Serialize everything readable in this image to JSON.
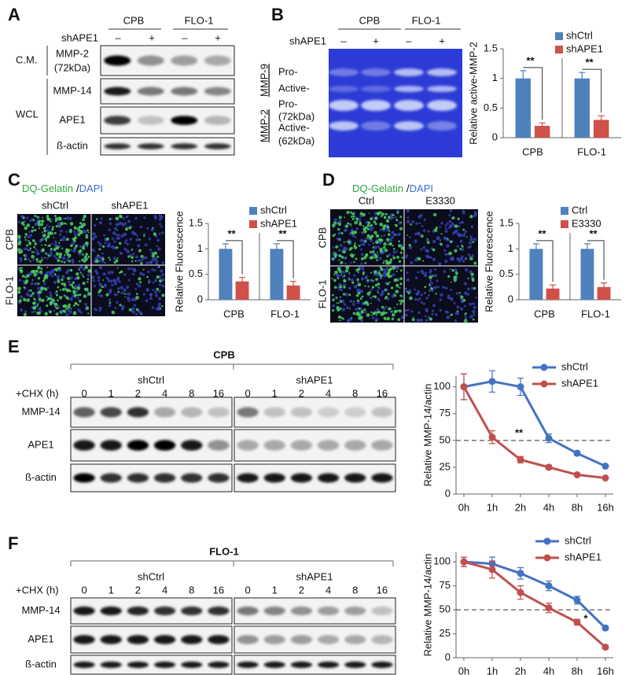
{
  "figure": {
    "A": {
      "label": "A",
      "groups": [
        "CPB",
        "FLO-1"
      ],
      "treatment": "shAPE1",
      "signs": [
        "–",
        "+",
        "–",
        "+"
      ],
      "sections": [
        "C.M.",
        "WCL"
      ],
      "blots": [
        {
          "name": "MMP-2",
          "sub": "(72kDa)"
        },
        {
          "name": "MMP-14"
        },
        {
          "name": "APE1"
        },
        {
          "name": "ß-actin"
        }
      ]
    },
    "B": {
      "label": "B",
      "groups": [
        "CPB",
        "FLO-1"
      ],
      "treatment": "shAPE1",
      "signs": [
        "–",
        "+",
        "–",
        "+"
      ],
      "enzymes": [
        "MMP-9",
        "MMP-2"
      ],
      "bands": [
        "Pro-",
        "Active-",
        "Pro-",
        "(72kDa)",
        "Active-",
        "(62kDa)"
      ]
    },
    "C": {
      "label": "C",
      "stain": "DQ-Gelatin",
      "slash": "/",
      "counter": "DAPI",
      "columns": [
        "shCtrl",
        "shAPE1"
      ],
      "rows": [
        "CPB",
        "FLO-1"
      ]
    },
    "D": {
      "label": "D",
      "stain": "DQ-Gelatin",
      "slash": "/",
      "counter": "DAPI",
      "columns": [
        "Ctrl",
        "E3330"
      ],
      "rows": [
        "CPB",
        "FLO-1"
      ]
    },
    "E": {
      "label": "E",
      "title": "CPB",
      "groups": [
        "shCtrl",
        "shAPE1"
      ],
      "time_label": "+CHX (h)",
      "times": [
        0,
        1,
        2,
        4,
        8,
        16
      ],
      "blots": [
        "MMP-14",
        "APE1",
        "ß-actin"
      ]
    },
    "F": {
      "label": "F",
      "title": "FLO-1",
      "groups": [
        "shCtrl",
        "shAPE1"
      ],
      "time_label": "+CHX (h)",
      "times": [
        0,
        1,
        2,
        4,
        8,
        16
      ],
      "blots": [
        "MMP-14",
        "APE1",
        "ß-actin"
      ]
    }
  },
  "chart_data": [
    {
      "type": "bar",
      "y_label": "Relative active-MMP-2",
      "categories": [
        "CPB",
        "FLO-1"
      ],
      "ylim": [
        0,
        1.5
      ],
      "yticks": [
        0,
        0.5,
        1,
        1.5
      ],
      "legend": "top-right",
      "series": [
        {
          "name": "shCtrl",
          "color": "#4f81bd",
          "values": [
            1,
            1
          ],
          "errors": [
            0.13,
            0.1
          ]
        },
        {
          "name": "shAPE1",
          "color": "#d0504a",
          "values": [
            0.2,
            0.3
          ],
          "errors": [
            0.05,
            0.07
          ]
        }
      ],
      "annotations": [
        "**",
        "**"
      ]
    },
    {
      "type": "bar",
      "y_label": "Relative Fluorescence",
      "categories": [
        "CPB",
        "FLO-1"
      ],
      "ylim": [
        0,
        1.5
      ],
      "yticks": [
        0,
        0.5,
        1,
        1.5
      ],
      "legend": "top-right",
      "series": [
        {
          "name": "shCtrl",
          "color": "#4f81bd",
          "values": [
            1,
            1
          ],
          "errors": [
            0.1,
            0.1
          ]
        },
        {
          "name": "shAPE1",
          "color": "#d0504a",
          "values": [
            0.36,
            0.28
          ],
          "errors": [
            0.08,
            0.08
          ]
        }
      ],
      "annotations": [
        "**",
        "**"
      ]
    },
    {
      "type": "bar",
      "y_label": "Relative Fluorescence",
      "categories": [
        "CPB",
        "FLO-1"
      ],
      "ylim": [
        0,
        1.5
      ],
      "yticks": [
        0,
        0.5,
        1,
        1.5
      ],
      "legend": "top-right",
      "series": [
        {
          "name": "Ctrl",
          "color": "#4f81bd",
          "values": [
            1,
            1
          ],
          "errors": [
            0.1,
            0.1
          ]
        },
        {
          "name": "E3330",
          "color": "#d0504a",
          "values": [
            0.22,
            0.25
          ],
          "errors": [
            0.07,
            0.08
          ]
        }
      ],
      "annotations": [
        "**",
        "**"
      ]
    },
    {
      "type": "line",
      "y_label": "Relative MMP-14/actin",
      "categories": [
        "0h",
        "1h",
        "2h",
        "4h",
        "8h",
        "16h"
      ],
      "ylim": [
        0,
        110
      ],
      "yticks": [
        0,
        25,
        50,
        75,
        100
      ],
      "legend": "top-right",
      "reference_line": 50,
      "series": [
        {
          "name": "shCtrl",
          "color": "#4472c4",
          "values": [
            100,
            105,
            100,
            52,
            38,
            26
          ],
          "errors": [
            12,
            10,
            8,
            4,
            2,
            1
          ]
        },
        {
          "name": "shAPE1",
          "color": "#c0504d",
          "values": [
            100,
            53,
            32,
            25,
            18,
            15
          ],
          "errors": [
            12,
            6,
            3,
            2,
            1,
            1
          ]
        }
      ],
      "annotation": "**"
    },
    {
      "type": "line",
      "y_label": "Relative MMP-14/actin",
      "categories": [
        "0h",
        "1h",
        "2h",
        "4h",
        "8h",
        "16h"
      ],
      "ylim": [
        0,
        110
      ],
      "yticks": [
        0,
        25,
        50,
        75,
        100
      ],
      "legend": "top-right",
      "reference_line": 50,
      "series": [
        {
          "name": "shCtrl",
          "color": "#4472c4",
          "values": [
            100,
            98,
            88,
            75,
            60,
            31
          ],
          "errors": [
            5,
            7,
            6,
            5,
            4,
            2
          ]
        },
        {
          "name": "shAPE1",
          "color": "#c0504d",
          "values": [
            100,
            92,
            68,
            52,
            37,
            11
          ],
          "errors": [
            5,
            9,
            7,
            5,
            3,
            2
          ]
        }
      ],
      "annotation": "*"
    }
  ]
}
